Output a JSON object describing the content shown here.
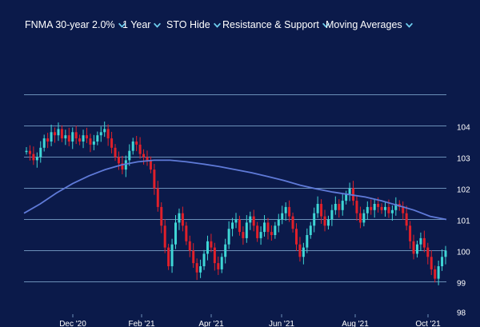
{
  "toolbar": {
    "instrument": "FNMA 30-year 2.0%",
    "range": "1 Year",
    "sto": "STO Hide",
    "resistance": "Resistance & Support",
    "averages": "Moving Averages",
    "icons": [
      "chevron-down-icon"
    ]
  },
  "colors": {
    "background": "#0b1a4a",
    "grid": "#6b8fb8",
    "up_candle": "#3fd6d6",
    "down_candle": "#e0202a",
    "moving_average": "#5f7ad8",
    "text": "#ffffff"
  },
  "chart_data": {
    "type": "candlestick",
    "y_ticks": [
      "104",
      "103",
      "102",
      "101",
      "100",
      "99",
      "98"
    ],
    "ylim": [
      98,
      105
    ],
    "x_ticks": [
      "Dec '20",
      "Feb '21",
      "Apr '21",
      "Jun '21",
      "Aug '21",
      "Oct '21"
    ],
    "grid": true,
    "price_series": [
      103.2,
      103.1,
      102.9,
      103.0,
      103.3,
      103.6,
      103.5,
      103.8,
      103.7,
      103.9,
      103.6,
      103.7,
      103.5,
      103.8,
      103.6,
      103.5,
      103.7,
      103.6,
      103.4,
      103.5,
      103.7,
      103.8,
      103.9,
      103.6,
      103.3,
      103.0,
      102.8,
      102.6,
      102.9,
      103.2,
      103.5,
      103.4,
      103.1,
      103.0,
      102.9,
      102.6,
      102.0,
      101.4,
      100.8,
      100.1,
      99.5,
      100.2,
      100.9,
      101.2,
      100.8,
      100.3,
      100.0,
      99.6,
      99.3,
      99.5,
      99.9,
      100.3,
      100.1,
      99.6,
      99.4,
      99.8,
      100.2,
      100.7,
      100.9,
      101.0,
      100.6,
      100.4,
      100.9,
      101.1,
      100.8,
      100.4,
      100.6,
      100.9,
      100.6,
      100.5,
      100.8,
      101.0,
      101.2,
      101.4,
      101.1,
      100.7,
      100.2,
      99.8,
      100.1,
      100.5,
      100.8,
      101.2,
      101.5,
      101.1,
      100.8,
      101.0,
      101.3,
      101.5,
      101.3,
      101.6,
      101.8,
      102.0,
      101.6,
      101.2,
      100.9,
      101.2,
      101.4,
      101.3,
      101.5,
      101.4,
      101.3,
      101.4,
      101.2,
      101.3,
      101.5,
      101.4,
      101.2,
      100.8,
      100.3,
      99.9,
      100.2,
      100.4,
      100.1,
      99.8,
      99.4,
      99.1,
      99.5,
      99.8,
      100.0
    ],
    "moving_average": [
      101.2,
      101.5,
      101.85,
      102.15,
      102.4,
      102.6,
      102.75,
      102.85,
      102.9,
      102.9,
      102.85,
      102.78,
      102.7,
      102.6,
      102.5,
      102.38,
      102.25,
      102.1,
      101.98,
      101.88,
      101.8,
      101.72,
      101.6,
      101.45,
      101.3,
      101.1,
      101.0
    ]
  }
}
